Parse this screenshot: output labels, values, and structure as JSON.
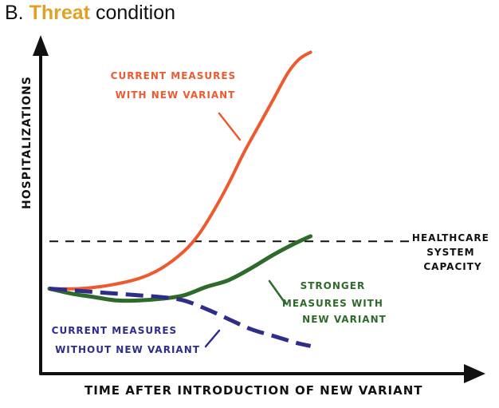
{
  "title": {
    "prefix": "B.",
    "accent": "Threat",
    "suffix": "condition",
    "accent_color": "#e0a224"
  },
  "chart_data": {
    "type": "line",
    "xlabel": "TIME AFTER INTRODUCTION OF NEW VARIANT",
    "ylabel": "HOSPITALIZATIONS",
    "xlim": [
      0,
      100
    ],
    "ylim": [
      0,
      100
    ],
    "grid": false,
    "capacity": {
      "value": 38,
      "label_lines": [
        "HEALTHCARE",
        "SYSTEM",
        "CAPACITY"
      ],
      "style": "dashed",
      "color": "#111111"
    },
    "series": [
      {
        "label_lines": [
          "CURRENT MEASURES",
          "WITH NEW VARIANT"
        ],
        "color": "#ee5a2f",
        "style": "solid",
        "x": [
          0,
          8,
          16,
          24,
          30,
          36,
          40,
          44,
          48,
          52,
          56,
          60,
          64,
          67,
          70
        ],
        "y": [
          24,
          24,
          25,
          27,
          30,
          35,
          40,
          47,
          55,
          64,
          72,
          80,
          88,
          92,
          94
        ]
      },
      {
        "label_lines": [
          "STRONGER",
          "MEASURES WITH",
          "NEW VARIANT"
        ],
        "color": "#2e6b2a",
        "style": "solid",
        "x": [
          0,
          6,
          12,
          18,
          24,
          30,
          36,
          42,
          48,
          54,
          60,
          66,
          70
        ],
        "y": [
          24,
          22.5,
          21.5,
          20.5,
          20.5,
          21,
          22,
          24.5,
          26.5,
          30,
          34,
          37.5,
          39.5
        ]
      },
      {
        "label_lines": [
          "CURRENT MEASURES",
          "WITHOUT NEW VARIANT"
        ],
        "color": "#2e2e8a",
        "style": "dashed",
        "x": [
          0,
          6,
          12,
          18,
          24,
          30,
          36,
          42,
          48,
          54,
          60,
          66,
          70
        ],
        "y": [
          24,
          23.5,
          23,
          22.5,
          22,
          21.5,
          20.5,
          18,
          15,
          12,
          10,
          8,
          7
        ]
      }
    ]
  }
}
